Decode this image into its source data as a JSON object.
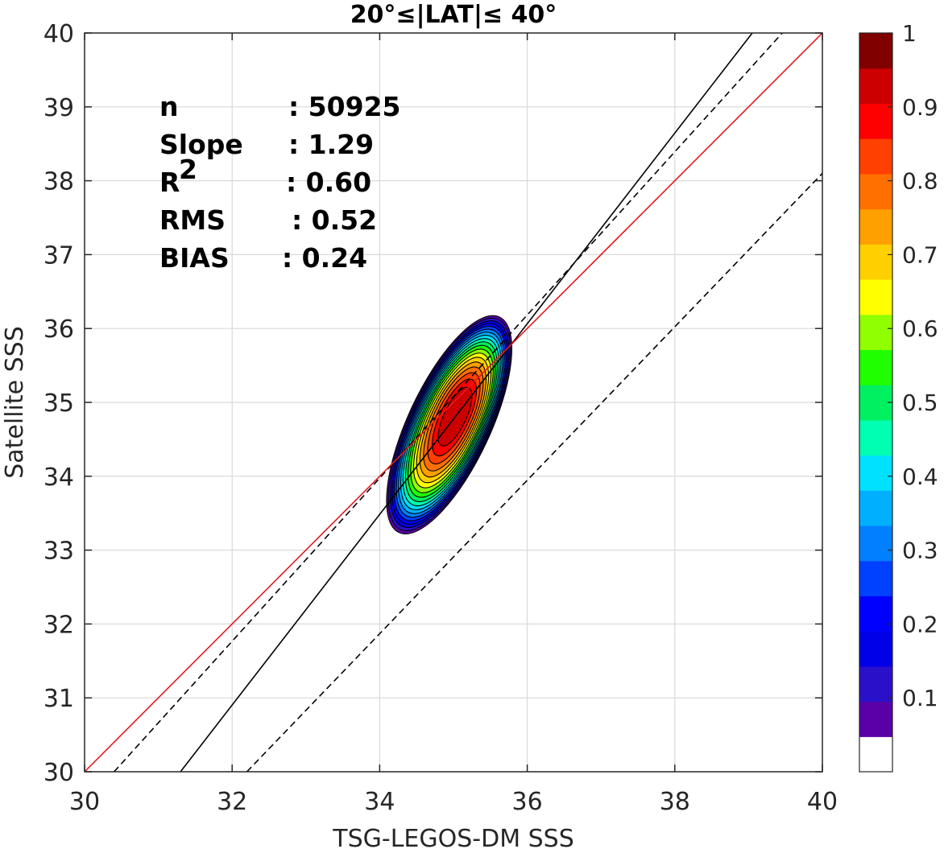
{
  "chart_data": {
    "type": "contour-scatter",
    "title": "20°≤|LAT|≤ 40°",
    "xlabel": "TSG-LEGOS-DM SSS",
    "ylabel": "Satellite SSS",
    "xlim": [
      30,
      40
    ],
    "ylim": [
      30,
      40
    ],
    "xticks": [
      30,
      32,
      34,
      36,
      38,
      40
    ],
    "yticks": [
      30,
      31,
      32,
      33,
      34,
      35,
      36,
      37,
      38,
      39,
      40
    ],
    "grid": true,
    "stats": [
      {
        "label": "n",
        "value": ": 50925"
      },
      {
        "label": "Slope",
        "value": ": 1.29"
      },
      {
        "label": "R",
        "sup": "2",
        "value": ": 0.60"
      },
      {
        "label": "RMS",
        "value": ": 0.52"
      },
      {
        "label": "BIAS",
        "value": ": 0.24"
      }
    ],
    "lines": [
      {
        "style": "solid",
        "color": "#000000",
        "points": [
          [
            31.3,
            30
          ],
          [
            39.05,
            40
          ]
        ]
      },
      {
        "style": "dashed",
        "color": "#000000",
        "points": [
          [
            30.4,
            30
          ],
          [
            40,
            40.6
          ]
        ]
      },
      {
        "style": "dashed",
        "color": "#000000",
        "points": [
          [
            32.2,
            30
          ],
          [
            40,
            38.1
          ]
        ]
      },
      {
        "style": "solid",
        "color": "#e41a1c",
        "points": [
          [
            30,
            30
          ],
          [
            40,
            40
          ]
        ]
      }
    ],
    "density": {
      "center": [
        35.05,
        35.0
      ],
      "peak_value": 1.0,
      "levels": [
        0.05,
        0.1,
        0.15,
        0.2,
        0.25,
        0.3,
        0.35,
        0.4,
        0.45,
        0.5,
        0.55,
        0.6,
        0.65,
        0.7,
        0.75,
        0.8,
        0.85,
        0.9,
        0.95
      ]
    },
    "colorbar": {
      "ticks": [
        "1",
        "0.9",
        "0.8",
        "0.7",
        "0.6",
        "0.5",
        "0.4",
        "0.3",
        "0.2",
        "0.1"
      ],
      "tick_values": [
        1,
        0.9,
        0.8,
        0.7,
        0.6,
        0.5,
        0.4,
        0.3,
        0.2,
        0.1
      ],
      "range": [
        0,
        1
      ],
      "colors": [
        "#ffffff",
        "#5a00a8",
        "#2a10c8",
        "#0000e8",
        "#0000ff",
        "#0040ff",
        "#0080ff",
        "#00b0ff",
        "#00e0ff",
        "#00ffb0",
        "#00f060",
        "#20ff00",
        "#90ff00",
        "#ffff00",
        "#ffd000",
        "#ff9f00",
        "#ff7000",
        "#ff4000",
        "#ff0000",
        "#cc0000",
        "#800000"
      ]
    }
  }
}
